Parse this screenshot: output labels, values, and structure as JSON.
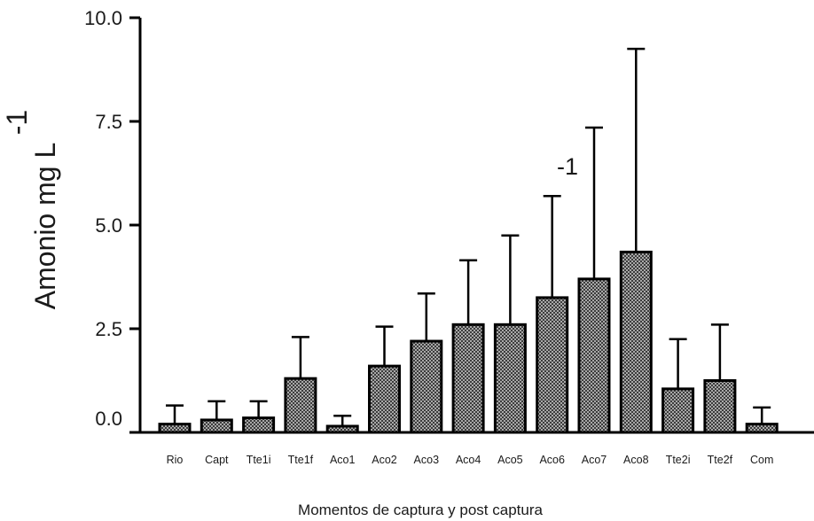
{
  "chart_data": {
    "type": "bar",
    "title": "",
    "xlabel": "Momentos de captura y post captura",
    "ylabel": "Amonio mg L",
    "ylabel_superscript": "-1",
    "stray_annotation": "-1",
    "ylim": [
      0,
      10
    ],
    "yticks": [
      "0.0",
      "2.5",
      "5.0",
      "7.5",
      "10.0"
    ],
    "ytick_values": [
      0,
      2.5,
      5,
      7.5,
      10
    ],
    "grid": false,
    "legend": "none",
    "categories": [
      "Rio",
      "Capt",
      "Tte1i",
      "Tte1f",
      "Aco1",
      "Aco2",
      "Aco3",
      "Aco4",
      "Aco5",
      "Aco6",
      "Aco7",
      "Aco8",
      "Tte2i",
      "Tte2f",
      "Com"
    ],
    "values": [
      0.2,
      0.3,
      0.35,
      1.3,
      0.15,
      1.6,
      2.2,
      2.6,
      2.6,
      3.25,
      3.7,
      4.35,
      1.05,
      1.25,
      0.2
    ],
    "errors": [
      0.45,
      0.45,
      0.4,
      1.0,
      0.25,
      0.95,
      1.15,
      1.55,
      2.15,
      2.45,
      3.65,
      4.9,
      1.2,
      1.35,
      0.4
    ],
    "bar_fill": "#8a8a8a",
    "bar_stroke": "#000000"
  }
}
